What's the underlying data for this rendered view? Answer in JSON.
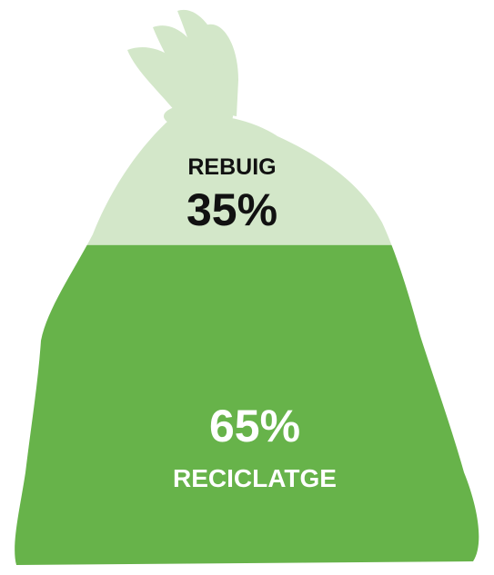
{
  "chart_data": {
    "type": "pie",
    "title": "",
    "slices": [
      {
        "label": "REBUIG",
        "value": 35,
        "display": "35%",
        "color": "#d3e7c9"
      },
      {
        "label": "RECICLATGE",
        "value": 65,
        "display": "65%",
        "color": "#67b34a"
      }
    ]
  }
}
